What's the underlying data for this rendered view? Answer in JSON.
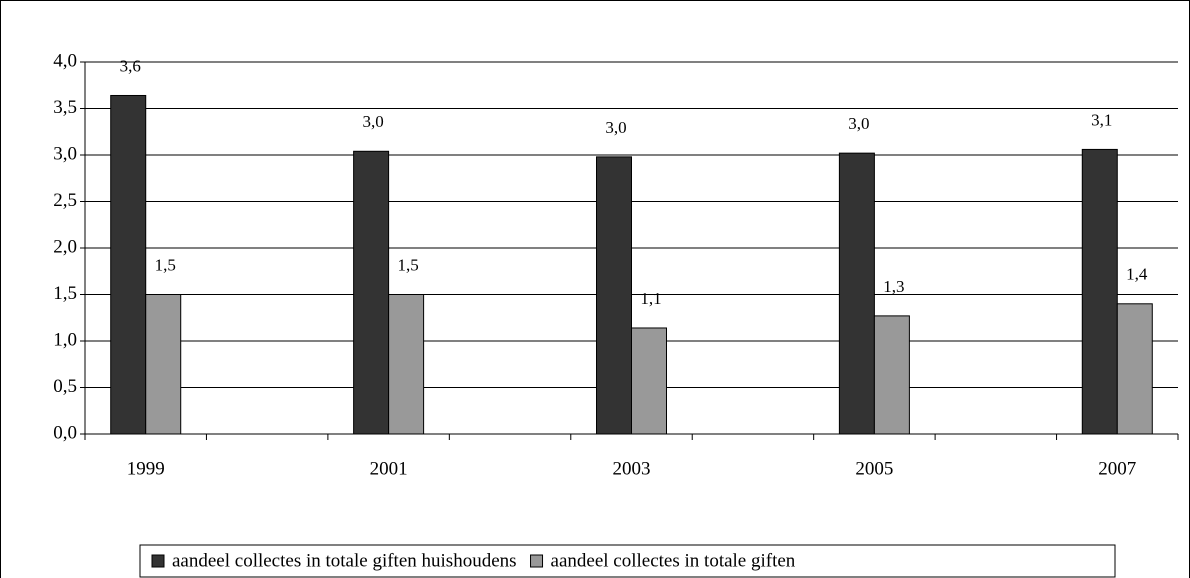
{
  "chart_data": {
    "type": "bar",
    "categories": [
      "1999",
      null,
      "2001",
      null,
      "2003",
      null,
      "2005",
      null,
      "2007"
    ],
    "series": [
      {
        "name": "aandeel collectes in totale giften huishoudens",
        "color": "#333333",
        "values": [
          3.64,
          null,
          3.04,
          null,
          2.98,
          null,
          3.02,
          null,
          3.06
        ],
        "value_labels": [
          "3,6",
          null,
          "3,0",
          null,
          "3,0",
          null,
          "3,0",
          null,
          "3,1"
        ]
      },
      {
        "name": "aandeel collectes in totale giften",
        "color": "#999999",
        "values": [
          1.5,
          null,
          1.5,
          null,
          1.14,
          null,
          1.27,
          null,
          1.4
        ],
        "value_labels": [
          "1,5",
          null,
          "1,5",
          null,
          "1,1",
          null,
          "1,3",
          null,
          "1,4"
        ]
      }
    ],
    "ylim": [
      0,
      4
    ],
    "yticks": [
      {
        "value": 0,
        "label": "0,0"
      },
      {
        "value": 0.5,
        "label": "0,5"
      },
      {
        "value": 1,
        "label": "1,0"
      },
      {
        "value": 1.5,
        "label": "1,5"
      },
      {
        "value": 2,
        "label": "2,0"
      },
      {
        "value": 2.5,
        "label": "2,5"
      },
      {
        "value": 3,
        "label": "3,0"
      },
      {
        "value": 3.5,
        "label": "3,5"
      },
      {
        "value": 4,
        "label": "4,0"
      }
    ],
    "grid": true,
    "legend": "bottom"
  }
}
